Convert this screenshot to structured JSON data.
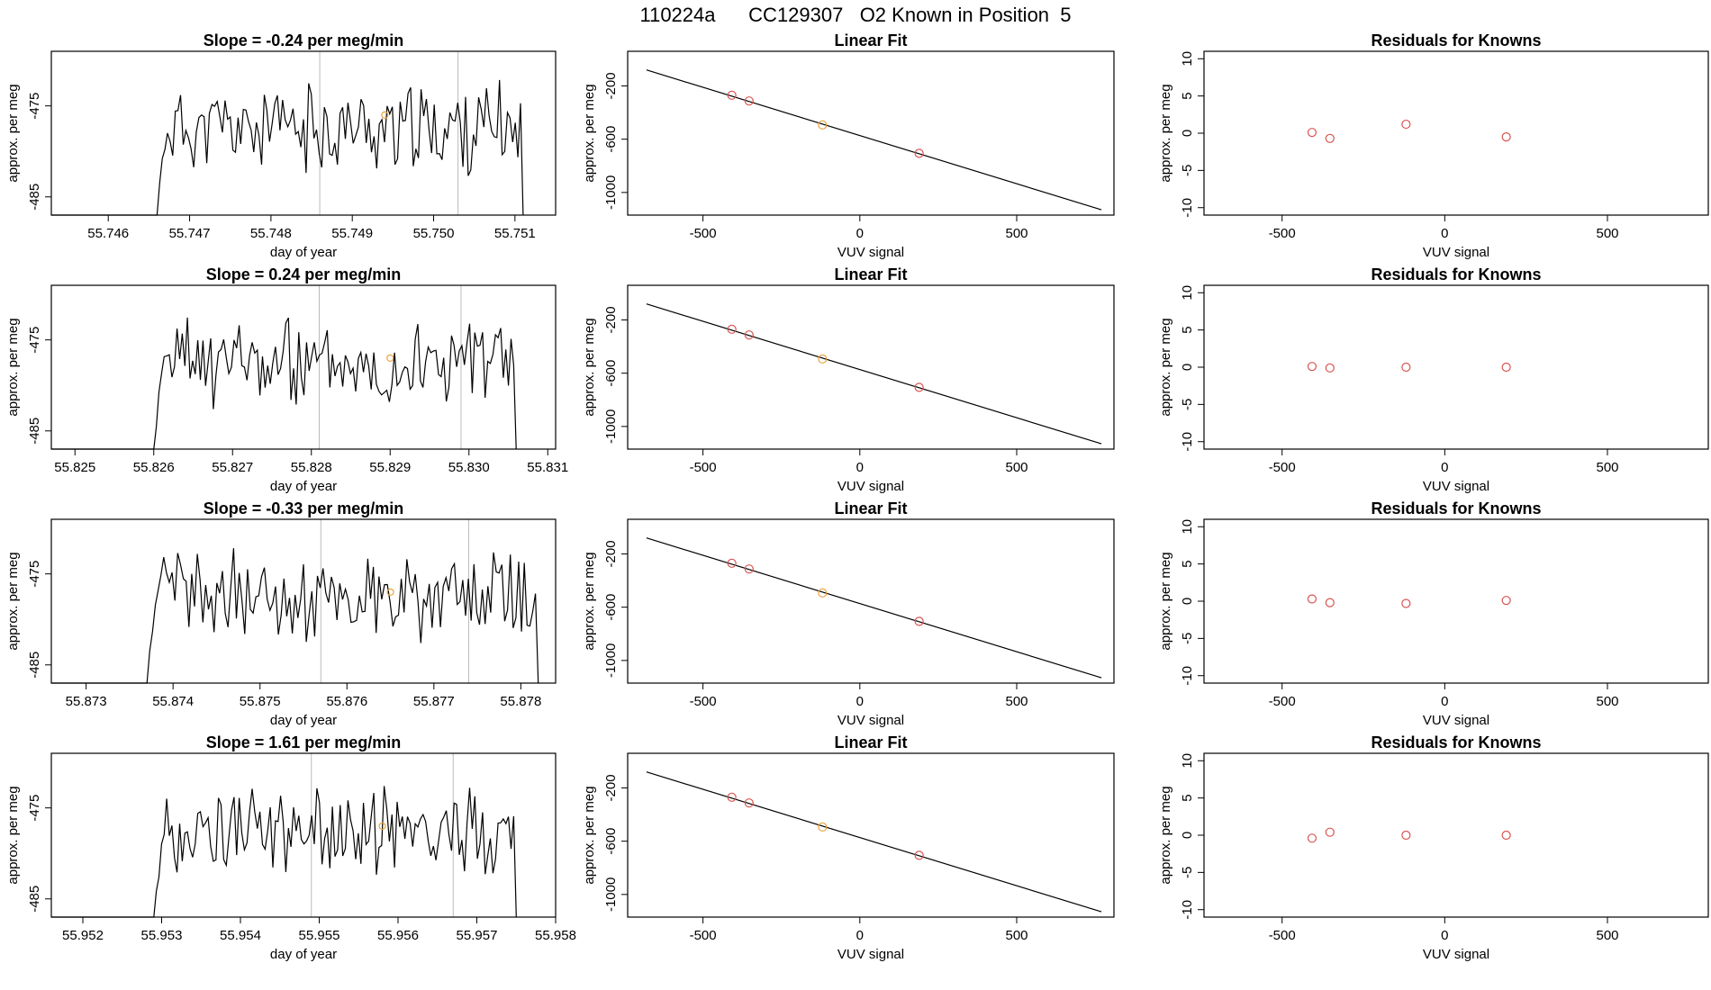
{
  "page": {
    "title": "110224a      CC129307   O2 Known in Position  5"
  },
  "colors": {
    "line": "#000000",
    "point_known": "#d9534f",
    "point_unknown": "#e8a33c",
    "vline": "#bbbbbb"
  },
  "chart_data": [
    {
      "type": "line",
      "title": "Slope =  -0.24  per meg/min",
      "xlabel": "day of year",
      "ylabel": "approx. per meg",
      "xlim": [
        55.7453,
        55.7515
      ],
      "ylim": [
        -487,
        -469
      ],
      "xticks": [
        55.746,
        55.747,
        55.748,
        55.749,
        55.75,
        55.751
      ],
      "xtick_labels": [
        "55.746",
        "55.747",
        "55.748",
        "55.749",
        "55.750",
        "55.751"
      ],
      "yticks": [
        -475,
        -485
      ],
      "ytick_labels": [
        "-475",
        "-485"
      ],
      "start": 55.7466,
      "end": 55.7511,
      "vlines": [
        55.7486,
        55.7503
      ],
      "orange_point": [
        55.7494,
        -476
      ],
      "seed": 11
    },
    {
      "type": "line",
      "title": "Slope =  0.24  per meg/min",
      "xlabel": "day of year",
      "ylabel": "approx. per meg",
      "xlim": [
        55.8247,
        55.8311
      ],
      "ylim": [
        -487,
        -469
      ],
      "xticks": [
        55.825,
        55.826,
        55.827,
        55.828,
        55.829,
        55.83,
        55.831
      ],
      "xtick_labels": [
        "55.825",
        "55.826",
        "55.827",
        "55.828",
        "55.829",
        "55.830",
        "55.831"
      ],
      "yticks": [
        -475,
        -485
      ],
      "ytick_labels": [
        "-475",
        "-485"
      ],
      "start": 55.826,
      "end": 55.8306,
      "vlines": [
        55.8281,
        55.8299
      ],
      "orange_point": [
        55.829,
        -477
      ],
      "seed": 23
    },
    {
      "type": "line",
      "title": "Slope =  -0.33  per meg/min",
      "xlabel": "day of year",
      "ylabel": "approx. per meg",
      "xlim": [
        55.8726,
        55.8784
      ],
      "ylim": [
        -487,
        -469
      ],
      "xticks": [
        55.873,
        55.874,
        55.875,
        55.876,
        55.877,
        55.878
      ],
      "xtick_labels": [
        "55.873",
        "55.874",
        "55.875",
        "55.876",
        "55.877",
        "55.878"
      ],
      "yticks": [
        -475,
        -485
      ],
      "ytick_labels": [
        "-475",
        "-485"
      ],
      "start": 55.8737,
      "end": 55.8782,
      "vlines": [
        55.8757,
        55.8774
      ],
      "orange_point": [
        55.8765,
        -477
      ],
      "seed": 37
    },
    {
      "type": "line",
      "title": "Slope =  1.61  per meg/min",
      "xlabel": "day of year",
      "ylabel": "approx. per meg",
      "xlim": [
        55.9516,
        55.958
      ],
      "ylim": [
        -487,
        -469
      ],
      "xticks": [
        55.952,
        55.953,
        55.954,
        55.955,
        55.956,
        55.957,
        55.958
      ],
      "xtick_labels": [
        "55.952",
        "55.953",
        "55.954",
        "55.955",
        "55.956",
        "55.957",
        "55.958"
      ],
      "yticks": [
        -475,
        -485
      ],
      "ytick_labels": [
        "-475",
        "-485"
      ],
      "start": 55.9529,
      "end": 55.9575,
      "vlines": [
        55.9549,
        55.9567
      ],
      "orange_point": [
        55.9558,
        -477
      ],
      "seed": 53
    },
    {
      "type": "scatter",
      "title": "Linear Fit",
      "xlabel": "VUV signal",
      "ylabel": "approx. per meg",
      "xlim": [
        -740,
        810
      ],
      "ylim": [
        -1170,
        60
      ],
      "xticks": [
        -500,
        0,
        500
      ],
      "xtick_labels": [
        "-500",
        "0",
        "500"
      ],
      "yticks": [
        -200,
        -600,
        -1000
      ],
      "ytick_labels": [
        "-200",
        "-600",
        "-1000"
      ],
      "fit_line": [
        [
          -680,
          -80
        ],
        [
          770,
          -1130
        ]
      ],
      "points_known": [
        [
          -408,
          -270
        ],
        [
          -353,
          -313
        ],
        [
          189,
          -706
        ]
      ],
      "points_unknown": [
        [
          -119,
          -493
        ]
      ]
    },
    {
      "type": "scatter",
      "title": "Linear Fit",
      "xlabel": "VUV signal",
      "ylabel": "approx. per meg",
      "xlim": [
        -740,
        810
      ],
      "ylim": [
        -1170,
        60
      ],
      "xticks": [
        -500,
        0,
        500
      ],
      "xtick_labels": [
        "-500",
        "0",
        "500"
      ],
      "yticks": [
        -200,
        -600,
        -1000
      ],
      "ytick_labels": [
        "-200",
        "-600",
        "-1000"
      ],
      "fit_line": [
        [
          -680,
          -80
        ],
        [
          770,
          -1130
        ]
      ],
      "points_known": [
        [
          -408,
          -270
        ],
        [
          -353,
          -313
        ],
        [
          189,
          -706
        ]
      ],
      "points_unknown": [
        [
          -119,
          -493
        ]
      ]
    },
    {
      "type": "scatter",
      "title": "Linear Fit",
      "xlabel": "VUV signal",
      "ylabel": "approx. per meg",
      "xlim": [
        -740,
        810
      ],
      "ylim": [
        -1170,
        60
      ],
      "xticks": [
        -500,
        0,
        500
      ],
      "xtick_labels": [
        "-500",
        "0",
        "500"
      ],
      "yticks": [
        -200,
        -600,
        -1000
      ],
      "ytick_labels": [
        "-200",
        "-600",
        "-1000"
      ],
      "fit_line": [
        [
          -680,
          -80
        ],
        [
          770,
          -1130
        ]
      ],
      "points_known": [
        [
          -408,
          -270
        ],
        [
          -353,
          -313
        ],
        [
          189,
          -706
        ]
      ],
      "points_unknown": [
        [
          -119,
          -493
        ]
      ]
    },
    {
      "type": "scatter",
      "title": "Linear Fit",
      "xlabel": "VUV signal",
      "ylabel": "approx. per meg",
      "xlim": [
        -740,
        810
      ],
      "ylim": [
        -1170,
        60
      ],
      "xticks": [
        -500,
        0,
        500
      ],
      "xtick_labels": [
        "-500",
        "0",
        "500"
      ],
      "yticks": [
        -200,
        -600,
        -1000
      ],
      "ytick_labels": [
        "-200",
        "-600",
        "-1000"
      ],
      "fit_line": [
        [
          -680,
          -80
        ],
        [
          770,
          -1130
        ]
      ],
      "points_known": [
        [
          -408,
          -270
        ],
        [
          -353,
          -313
        ],
        [
          189,
          -706
        ]
      ],
      "points_unknown": [
        [
          -119,
          -493
        ]
      ]
    },
    {
      "type": "scatter",
      "title": "Residuals for Knowns",
      "xlabel": "VUV signal",
      "ylabel": "approx. per meg",
      "xlim": [
        -740,
        810
      ],
      "ylim": [
        -11,
        11
      ],
      "xticks": [
        -500,
        0,
        500
      ],
      "xtick_labels": [
        "-500",
        "0",
        "500"
      ],
      "yticks": [
        10,
        5,
        0,
        -5,
        -10
      ],
      "ytick_labels": [
        "10",
        "5",
        "0",
        "-5",
        "-10"
      ],
      "points_known": [
        [
          -408,
          0.1
        ],
        [
          -353,
          -0.7
        ],
        [
          -119,
          1.2
        ],
        [
          189,
          -0.5
        ]
      ]
    },
    {
      "type": "scatter",
      "title": "Residuals for Knowns",
      "xlabel": "VUV signal",
      "ylabel": "approx. per meg",
      "xlim": [
        -740,
        810
      ],
      "ylim": [
        -11,
        11
      ],
      "xticks": [
        -500,
        0,
        500
      ],
      "xtick_labels": [
        "-500",
        "0",
        "500"
      ],
      "yticks": [
        10,
        5,
        0,
        -5,
        -10
      ],
      "ytick_labels": [
        "10",
        "5",
        "0",
        "-5",
        "-10"
      ],
      "points_known": [
        [
          -408,
          0.1
        ],
        [
          -353,
          -0.1
        ],
        [
          -119,
          0.0
        ],
        [
          189,
          0.0
        ]
      ]
    },
    {
      "type": "scatter",
      "title": "Residuals for Knowns",
      "xlabel": "VUV signal",
      "ylabel": "approx. per meg",
      "xlim": [
        -740,
        810
      ],
      "ylim": [
        -11,
        11
      ],
      "xticks": [
        -500,
        0,
        500
      ],
      "xtick_labels": [
        "-500",
        "0",
        "500"
      ],
      "yticks": [
        10,
        5,
        0,
        -5,
        -10
      ],
      "ytick_labels": [
        "10",
        "5",
        "0",
        "-5",
        "-10"
      ],
      "points_known": [
        [
          -408,
          0.3
        ],
        [
          -353,
          -0.2
        ],
        [
          -119,
          -0.3
        ],
        [
          189,
          0.1
        ]
      ]
    },
    {
      "type": "scatter",
      "title": "Residuals for Knowns",
      "xlabel": "VUV signal",
      "ylabel": "approx. per meg",
      "xlim": [
        -740,
        810
      ],
      "ylim": [
        -11,
        11
      ],
      "xticks": [
        -500,
        0,
        500
      ],
      "xtick_labels": [
        "-500",
        "0",
        "500"
      ],
      "yticks": [
        10,
        5,
        0,
        -5,
        -10
      ],
      "ytick_labels": [
        "10",
        "5",
        "0",
        "-5",
        "-10"
      ],
      "points_known": [
        [
          -408,
          -0.4
        ],
        [
          -353,
          0.4
        ],
        [
          -119,
          0.0
        ],
        [
          189,
          0.0
        ]
      ]
    }
  ]
}
